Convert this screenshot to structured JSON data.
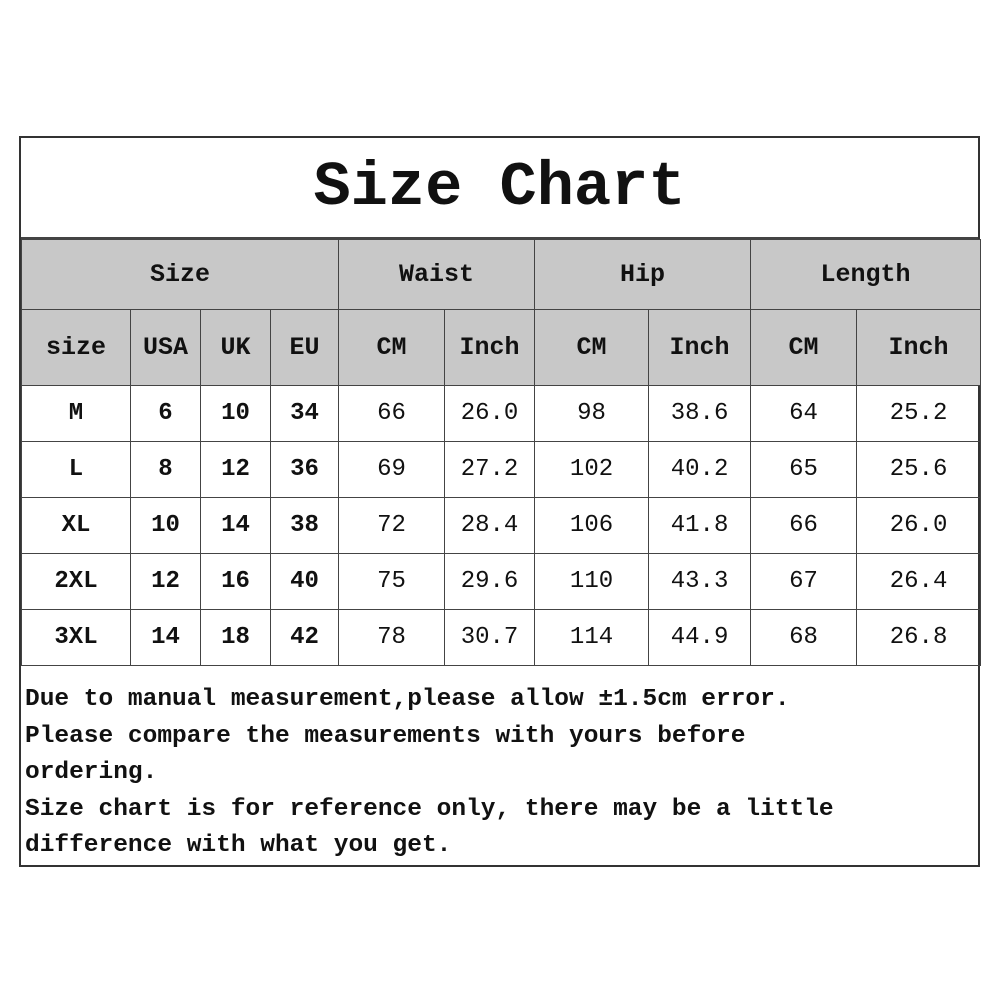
{
  "title": "Size Chart",
  "group_headers": [
    "Size",
    "Waist",
    "Hip",
    "Length"
  ],
  "sub_headers": [
    "size",
    "USA",
    "UK",
    "EU",
    "CM",
    "Inch",
    "CM",
    "Inch",
    "CM",
    "Inch"
  ],
  "rows": [
    [
      "M",
      "6",
      "10",
      "34",
      "66",
      "26.0",
      "98",
      "38.6",
      "64",
      "25.2"
    ],
    [
      "L",
      "8",
      "12",
      "36",
      "69",
      "27.2",
      "102",
      "40.2",
      "65",
      "25.6"
    ],
    [
      "XL",
      "10",
      "14",
      "38",
      "72",
      "28.4",
      "106",
      "41.8",
      "66",
      "26.0"
    ],
    [
      "2XL",
      "12",
      "16",
      "40",
      "75",
      "29.6",
      "110",
      "43.3",
      "67",
      "26.4"
    ],
    [
      "3XL",
      "14",
      "18",
      "42",
      "78",
      "30.7",
      "114",
      "44.9",
      "68",
      "26.8"
    ]
  ],
  "notes": [
    "Due to manual measurement,please allow ±1.5cm error.",
    "Please compare the measurements with yours before",
    "ordering.",
    "Size chart is for reference only, there may be a little",
    "difference with what you get."
  ],
  "colors": {
    "header_bg": "#c8c8c8",
    "border": "#444444"
  }
}
